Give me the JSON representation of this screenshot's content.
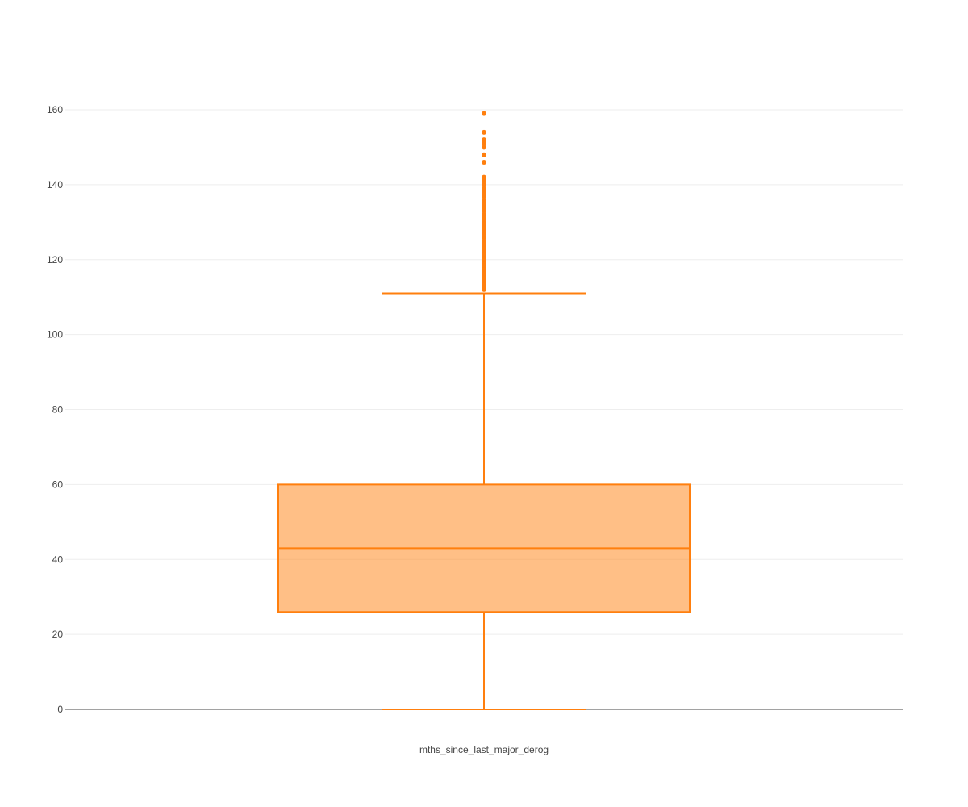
{
  "chart_data": {
    "type": "box",
    "categories": [
      "mths_since_last_major_derog"
    ],
    "y_ticks": [
      "0",
      "20",
      "40",
      "60",
      "80",
      "100",
      "120",
      "140",
      "160"
    ],
    "ylim": [
      0,
      160
    ],
    "grid": true,
    "legend": "none",
    "series": [
      {
        "category": "mths_since_last_major_derog",
        "min": 0,
        "q1": 26,
        "median": 43,
        "q3": 60,
        "max": 111,
        "outliers": [
          112,
          112.5,
          113,
          113.5,
          114,
          114.5,
          115,
          115.5,
          116,
          116.5,
          117,
          117.5,
          118,
          118.5,
          119,
          119.5,
          120,
          120.5,
          121,
          121.5,
          122,
          122.5,
          123,
          123.5,
          124,
          124.5,
          125,
          126,
          127,
          128,
          129,
          130,
          131,
          132,
          133,
          134,
          135,
          136,
          137,
          138,
          139,
          140,
          141,
          142,
          146,
          148,
          150,
          151,
          152,
          154,
          159
        ]
      }
    ],
    "colors": {
      "box_line": "#ff7f0e",
      "box_fill": "rgba(255,127,14,0.5)",
      "grid": "#eeeeee",
      "zero_line": "#444444"
    }
  }
}
